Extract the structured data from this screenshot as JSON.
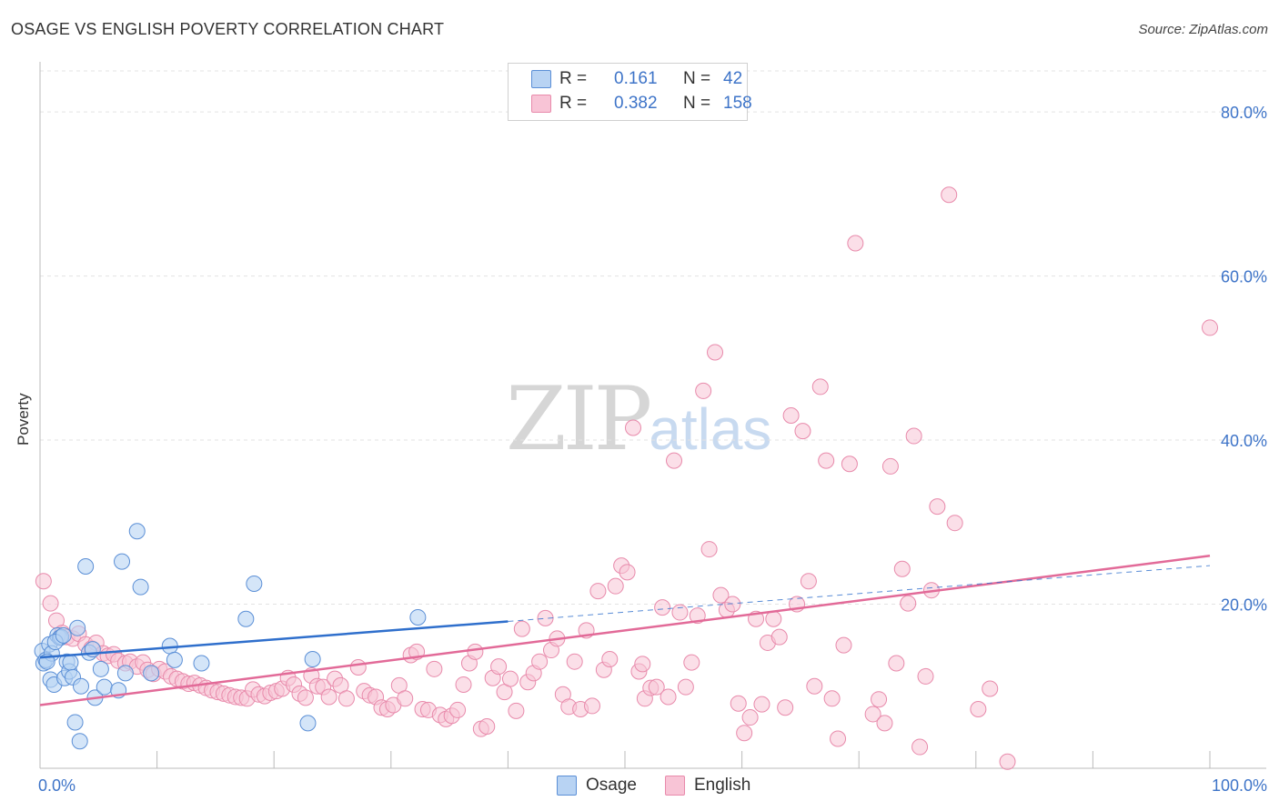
{
  "header": {
    "title": "OSAGE VS ENGLISH POVERTY CORRELATION CHART",
    "source": "Source: ZipAtlas.com"
  },
  "watermark": {
    "zip": "ZIP",
    "atlas": "atlas"
  },
  "legend": {
    "rows": [
      {
        "r_label": "R =",
        "r_value": "0.161",
        "n_label": "N =",
        "n_value": "42"
      },
      {
        "r_label": "R =",
        "r_value": "0.382",
        "n_label": "N =",
        "n_value": "158"
      }
    ]
  },
  "bottom_legend": {
    "osage": "Osage",
    "english": "English"
  },
  "colors": {
    "osage_fill": "#b8d3f3",
    "osage_stroke": "#5b8fd6",
    "osage_line": "#2f6fcc",
    "english_fill": "#f8c4d6",
    "english_stroke": "#e88aab",
    "english_line": "#e26a98",
    "axis_text": "#3e74c8",
    "grid": "#e3e3e3"
  },
  "chart_data": {
    "type": "scatter",
    "title": "OSAGE VS ENGLISH POVERTY CORRELATION CHART",
    "xlabel": "",
    "ylabel": "Poverty",
    "xlim": [
      0,
      100
    ],
    "ylim": [
      0,
      85
    ],
    "x_tick_labels": [
      "0.0%",
      "100.0%"
    ],
    "y_ticks": [
      20,
      40,
      60,
      80
    ],
    "y_tick_labels": [
      "20.0%",
      "40.0%",
      "60.0%",
      "80.0%"
    ],
    "grid": true,
    "series": [
      {
        "name": "Osage",
        "r": 0.161,
        "n": 42,
        "trend": {
          "x0": 0,
          "y0": 13.5,
          "x1": 40,
          "y1": 17.9,
          "dashed_to_x": 100,
          "dashed_y": 24.7
        },
        "points": [
          [
            0.2,
            14.3
          ],
          [
            0.3,
            12.8
          ],
          [
            0.5,
            13.2
          ],
          [
            0.8,
            15.1
          ],
          [
            0.9,
            10.8
          ],
          [
            1.0,
            14.0
          ],
          [
            1.2,
            10.2
          ],
          [
            1.5,
            16.2
          ],
          [
            1.7,
            15.9
          ],
          [
            1.8,
            16.0
          ],
          [
            2.1,
            11.0
          ],
          [
            2.3,
            13.0
          ],
          [
            2.5,
            11.8
          ],
          [
            2.6,
            12.9
          ],
          [
            2.8,
            11.1
          ],
          [
            3.2,
            17.1
          ],
          [
            3.5,
            10.0
          ],
          [
            3.9,
            24.6
          ],
          [
            4.2,
            14.1
          ],
          [
            4.7,
            8.6
          ],
          [
            5.2,
            12.1
          ],
          [
            5.5,
            9.9
          ],
          [
            6.7,
            9.5
          ],
          [
            7.0,
            25.2
          ],
          [
            7.3,
            11.6
          ],
          [
            8.3,
            28.9
          ],
          [
            8.6,
            22.1
          ],
          [
            11.1,
            14.9
          ],
          [
            11.5,
            13.2
          ],
          [
            13.8,
            12.8
          ],
          [
            17.6,
            18.2
          ],
          [
            18.3,
            22.5
          ],
          [
            23.3,
            13.3
          ],
          [
            32.3,
            18.4
          ],
          [
            3.0,
            5.6
          ],
          [
            3.4,
            3.3
          ],
          [
            22.9,
            5.5
          ],
          [
            9.5,
            11.6
          ],
          [
            0.6,
            13.0
          ],
          [
            1.3,
            15.4
          ],
          [
            2.0,
            16.2
          ],
          [
            4.5,
            14.5
          ]
        ]
      },
      {
        "name": "English",
        "r": 0.382,
        "n": 158,
        "trend": {
          "x0": 0,
          "y0": 7.7,
          "x1": 100,
          "y1": 25.9
        },
        "points": [
          [
            0.3,
            22.8
          ],
          [
            0.9,
            20.1
          ],
          [
            1.4,
            18.0
          ],
          [
            1.9,
            16.5
          ],
          [
            2.3,
            16.0
          ],
          [
            2.8,
            15.8
          ],
          [
            3.3,
            16.4
          ],
          [
            3.9,
            15.1
          ],
          [
            4.4,
            14.6
          ],
          [
            4.8,
            15.3
          ],
          [
            5.4,
            14.0
          ],
          [
            5.8,
            13.7
          ],
          [
            6.3,
            13.9
          ],
          [
            6.7,
            13.1
          ],
          [
            7.3,
            12.8
          ],
          [
            7.7,
            13.0
          ],
          [
            8.3,
            12.4
          ],
          [
            8.8,
            12.9
          ],
          [
            9.2,
            12.0
          ],
          [
            9.7,
            11.5
          ],
          [
            10.2,
            12.1
          ],
          [
            10.7,
            11.8
          ],
          [
            11.2,
            11.2
          ],
          [
            11.7,
            10.9
          ],
          [
            12.2,
            10.6
          ],
          [
            12.7,
            10.3
          ],
          [
            13.2,
            10.4
          ],
          [
            13.7,
            10.1
          ],
          [
            14.2,
            9.8
          ],
          [
            14.7,
            9.5
          ],
          [
            15.2,
            9.3
          ],
          [
            15.7,
            9.1
          ],
          [
            16.2,
            8.9
          ],
          [
            16.7,
            8.7
          ],
          [
            17.2,
            8.6
          ],
          [
            17.7,
            8.5
          ],
          [
            18.2,
            9.6
          ],
          [
            18.7,
            9.0
          ],
          [
            19.2,
            8.8
          ],
          [
            19.7,
            9.2
          ],
          [
            20.2,
            9.4
          ],
          [
            20.7,
            9.7
          ],
          [
            21.2,
            11.0
          ],
          [
            21.7,
            10.2
          ],
          [
            22.2,
            9.1
          ],
          [
            22.7,
            8.6
          ],
          [
            23.2,
            11.3
          ],
          [
            23.7,
            10.0
          ],
          [
            24.2,
            9.9
          ],
          [
            24.7,
            8.7
          ],
          [
            25.2,
            10.9
          ],
          [
            25.7,
            10.1
          ],
          [
            26.2,
            8.5
          ],
          [
            27.2,
            12.3
          ],
          [
            27.7,
            9.4
          ],
          [
            28.2,
            8.9
          ],
          [
            28.7,
            8.7
          ],
          [
            29.2,
            7.4
          ],
          [
            29.7,
            7.2
          ],
          [
            30.2,
            7.7
          ],
          [
            30.7,
            10.1
          ],
          [
            31.2,
            8.5
          ],
          [
            31.7,
            13.8
          ],
          [
            32.2,
            14.2
          ],
          [
            32.7,
            7.2
          ],
          [
            33.2,
            7.1
          ],
          [
            33.7,
            12.1
          ],
          [
            34.2,
            6.5
          ],
          [
            34.7,
            6.0
          ],
          [
            35.2,
            6.4
          ],
          [
            35.7,
            7.1
          ],
          [
            36.2,
            10.2
          ],
          [
            36.7,
            12.8
          ],
          [
            37.2,
            14.2
          ],
          [
            37.7,
            4.8
          ],
          [
            38.2,
            5.1
          ],
          [
            38.7,
            11.0
          ],
          [
            39.2,
            12.4
          ],
          [
            39.7,
            9.3
          ],
          [
            40.2,
            10.9
          ],
          [
            40.7,
            7.0
          ],
          [
            41.2,
            17.0
          ],
          [
            41.7,
            10.5
          ],
          [
            42.2,
            11.6
          ],
          [
            42.7,
            13.0
          ],
          [
            43.2,
            18.3
          ],
          [
            43.7,
            14.4
          ],
          [
            44.2,
            15.8
          ],
          [
            44.7,
            9.0
          ],
          [
            45.2,
            7.5
          ],
          [
            45.7,
            13.0
          ],
          [
            46.2,
            7.2
          ],
          [
            46.7,
            16.8
          ],
          [
            47.2,
            7.6
          ],
          [
            47.7,
            21.6
          ],
          [
            48.2,
            12.0
          ],
          [
            48.7,
            13.3
          ],
          [
            49.2,
            22.2
          ],
          [
            49.7,
            24.7
          ],
          [
            50.2,
            23.9
          ],
          [
            50.7,
            41.5
          ],
          [
            51.2,
            11.8
          ],
          [
            51.7,
            8.5
          ],
          [
            52.2,
            9.8
          ],
          [
            52.7,
            9.9
          ],
          [
            53.2,
            19.6
          ],
          [
            53.7,
            8.7
          ],
          [
            54.2,
            37.5
          ],
          [
            54.7,
            19.0
          ],
          [
            55.2,
            9.9
          ],
          [
            55.7,
            12.9
          ],
          [
            56.2,
            18.6
          ],
          [
            56.7,
            46.0
          ],
          [
            57.2,
            26.7
          ],
          [
            57.7,
            50.7
          ],
          [
            58.2,
            21.1
          ],
          [
            58.7,
            19.3
          ],
          [
            59.2,
            20.0
          ],
          [
            59.7,
            7.9
          ],
          [
            60.2,
            4.3
          ],
          [
            60.7,
            6.2
          ],
          [
            61.2,
            18.2
          ],
          [
            61.7,
            7.8
          ],
          [
            62.2,
            15.3
          ],
          [
            62.7,
            18.2
          ],
          [
            63.2,
            16.0
          ],
          [
            63.7,
            7.4
          ],
          [
            64.2,
            43.0
          ],
          [
            64.7,
            20.0
          ],
          [
            65.2,
            41.1
          ],
          [
            65.7,
            22.8
          ],
          [
            66.2,
            10.0
          ],
          [
            66.7,
            46.5
          ],
          [
            67.2,
            37.5
          ],
          [
            67.7,
            8.5
          ],
          [
            68.2,
            3.6
          ],
          [
            68.7,
            15.0
          ],
          [
            69.2,
            37.1
          ],
          [
            69.7,
            64.0
          ],
          [
            71.2,
            6.6
          ],
          [
            71.7,
            8.4
          ],
          [
            72.2,
            5.5
          ],
          [
            72.7,
            36.8
          ],
          [
            73.2,
            12.8
          ],
          [
            73.7,
            24.3
          ],
          [
            74.2,
            20.1
          ],
          [
            74.7,
            40.5
          ],
          [
            75.2,
            2.6
          ],
          [
            75.7,
            11.2
          ],
          [
            76.2,
            21.7
          ],
          [
            76.7,
            31.9
          ],
          [
            77.7,
            69.9
          ],
          [
            78.2,
            29.9
          ],
          [
            80.2,
            7.2
          ],
          [
            81.2,
            9.7
          ],
          [
            82.7,
            0.8
          ],
          [
            100.0,
            53.7
          ],
          [
            51.5,
            12.7
          ]
        ]
      }
    ]
  }
}
